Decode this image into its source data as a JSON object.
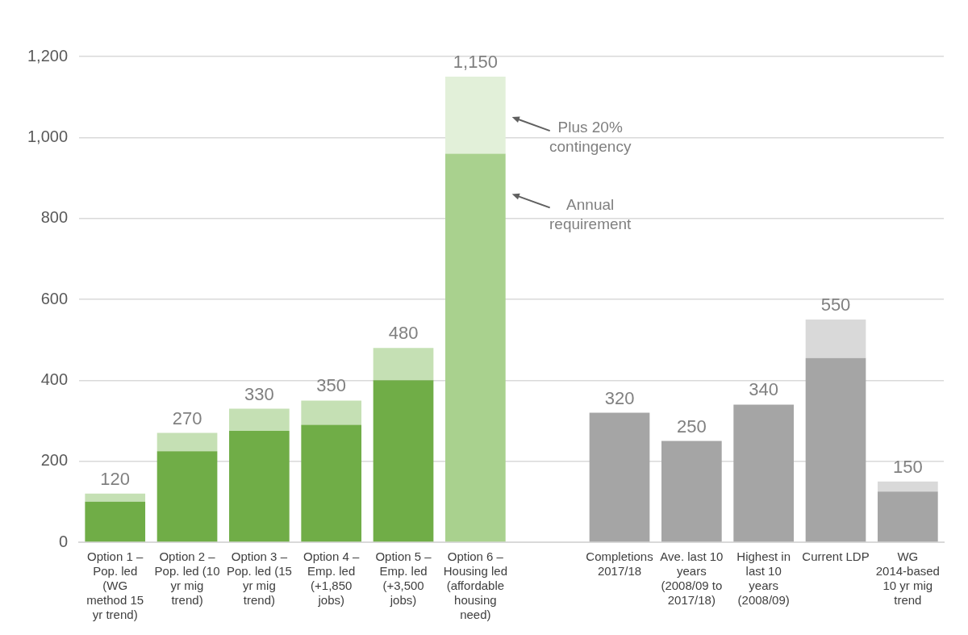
{
  "chart_data": {
    "type": "bar",
    "stacked": true,
    "categories": [
      "Option 1 – Pop. led (WG method 15 yr trend)",
      "Option 2 – Pop. led (10 yr mig trend)",
      "Option 3 – Pop. led (15 yr mig trend)",
      "Option 4 – Emp. led (+1,850 jobs)",
      "Option 5 – Emp. led (+3,500 jobs)",
      "Option 6 – Housing led (affordable housing need)",
      null,
      "Completions 2017/18",
      "Ave. last 10 years (2008/09 to 2017/18)",
      "Highest in last 10 years (2008/09)",
      "Current LDP",
      "WG 2014-based 10 yr mig trend"
    ],
    "series": [
      {
        "values": [
          100,
          225,
          275,
          290,
          400,
          960,
          null,
          320,
          250,
          340,
          455,
          125
        ],
        "colors": [
          "#70ad47",
          "#70ad47",
          "#70ad47",
          "#70ad47",
          "#70ad47",
          "#a9d18e",
          null,
          "#a5a5a5",
          "#a5a5a5",
          "#a5a5a5",
          "#a5a5a5",
          "#a5a5a5"
        ]
      },
      {
        "values": [
          20,
          45,
          55,
          60,
          80,
          190,
          null,
          null,
          null,
          null,
          95,
          25
        ],
        "colors": [
          "#c5e0b4",
          "#c5e0b4",
          "#c5e0b4",
          "#c5e0b4",
          "#c5e0b4",
          "#e2f0d9",
          null,
          null,
          null,
          null,
          "#d9d9d9",
          "#d9d9d9"
        ]
      }
    ],
    "totals": [
      "120",
      "270",
      "330",
      "350",
      "480",
      "1,150",
      null,
      "320",
      "250",
      "340",
      "550",
      "150"
    ],
    "ylim": [
      0,
      1200
    ],
    "yticks": [
      0,
      200,
      400,
      600,
      800,
      {
        "value": 1000,
        "label": "1,000"
      },
      {
        "value": 1200,
        "label": "1,200"
      }
    ],
    "grid": "y",
    "legend": false,
    "annotations": [
      "Plus 20% contingency",
      "Annual requirement"
    ]
  }
}
